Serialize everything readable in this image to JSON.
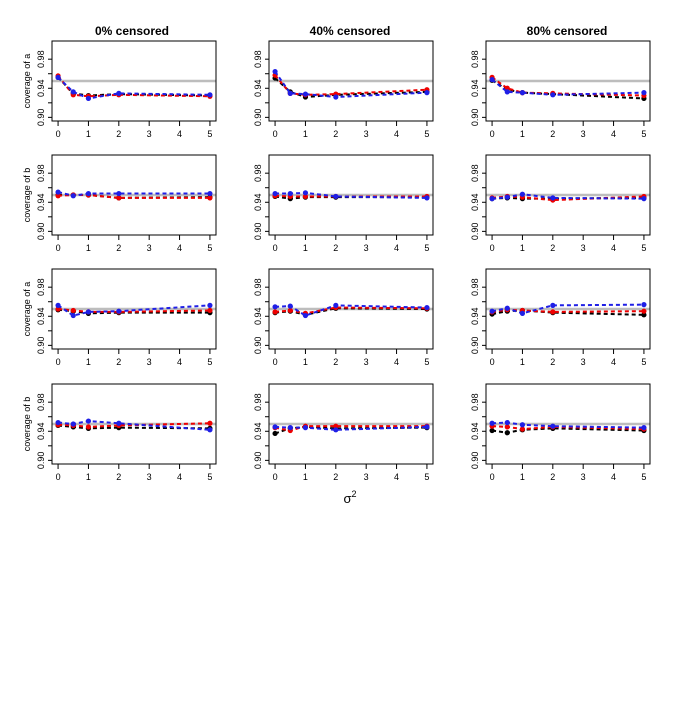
{
  "figure": {
    "column_titles": [
      "0% censored",
      "40% censored",
      "80% censored"
    ],
    "ylabels": [
      "coverage of a",
      "coverage of b",
      "coverage of a",
      "coverage of b"
    ],
    "xlabel": "σ",
    "xlabel_sup": "2",
    "x_ticks": [
      0,
      1,
      2,
      3,
      4,
      5
    ],
    "y_ticks": [
      "0.90",
      "0.94",
      "0.98"
    ],
    "colors": {
      "black": "#000000",
      "red": "#ee0000",
      "blue": "#1f1fe6",
      "reference": "#bdbdbd",
      "frame": "#000000"
    }
  },
  "chart_data": [
    {
      "type": "line",
      "row": 1,
      "col": 1,
      "title": "0% censored",
      "ylabel": "coverage of a",
      "xlabel": "",
      "xlim": [
        0,
        5
      ],
      "ylim": [
        0.9,
        1.0
      ],
      "reference_line": 0.95,
      "grid": false,
      "x": [
        0,
        0.5,
        1,
        2,
        5
      ],
      "series": [
        {
          "color": "black",
          "values": [
            0.955,
            0.933,
            0.93,
            0.932,
            0.93
          ]
        },
        {
          "color": "red",
          "values": [
            0.957,
            0.931,
            0.929,
            0.931,
            0.929
          ]
        },
        {
          "color": "blue",
          "values": [
            0.955,
            0.935,
            0.926,
            0.933,
            0.931
          ]
        }
      ]
    },
    {
      "type": "line",
      "row": 1,
      "col": 2,
      "title": "40% censored",
      "ylabel": "",
      "xlabel": "",
      "xlim": [
        0,
        5
      ],
      "ylim": [
        0.9,
        1.0
      ],
      "reference_line": 0.95,
      "grid": false,
      "x": [
        0,
        0.5,
        1,
        2,
        5
      ],
      "series": [
        {
          "color": "black",
          "values": [
            0.954,
            0.935,
            0.928,
            0.931,
            0.935
          ]
        },
        {
          "color": "red",
          "values": [
            0.958,
            0.933,
            0.931,
            0.932,
            0.938
          ]
        },
        {
          "color": "blue",
          "values": [
            0.963,
            0.933,
            0.932,
            0.928,
            0.934
          ]
        }
      ]
    },
    {
      "type": "line",
      "row": 1,
      "col": 3,
      "title": "80% censored",
      "ylabel": "",
      "xlabel": "",
      "xlim": [
        0,
        5
      ],
      "ylim": [
        0.9,
        1.0
      ],
      "reference_line": 0.95,
      "grid": false,
      "x": [
        0,
        0.5,
        1,
        2,
        5
      ],
      "series": [
        {
          "color": "black",
          "values": [
            0.951,
            0.938,
            0.934,
            0.932,
            0.926
          ]
        },
        {
          "color": "red",
          "values": [
            0.955,
            0.94,
            0.934,
            0.933,
            0.93
          ]
        },
        {
          "color": "blue",
          "values": [
            0.952,
            0.935,
            0.934,
            0.931,
            0.934
          ]
        }
      ]
    },
    {
      "type": "line",
      "row": 2,
      "col": 1,
      "title": "",
      "ylabel": "coverage of b",
      "xlabel": "",
      "xlim": [
        0,
        5
      ],
      "ylim": [
        0.9,
        1.0
      ],
      "reference_line": 0.95,
      "grid": false,
      "x": [
        0,
        0.5,
        1,
        2,
        5
      ],
      "series": [
        {
          "color": "black",
          "values": [
            0.95,
            0.95,
            0.95,
            0.946,
            0.947
          ]
        },
        {
          "color": "red",
          "values": [
            0.949,
            0.95,
            0.95,
            0.946,
            0.946
          ]
        },
        {
          "color": "blue",
          "values": [
            0.954,
            0.949,
            0.952,
            0.952,
            0.952
          ]
        }
      ]
    },
    {
      "type": "line",
      "row": 2,
      "col": 2,
      "title": "",
      "ylabel": "",
      "xlabel": "",
      "xlim": [
        0,
        5
      ],
      "ylim": [
        0.9,
        1.0
      ],
      "reference_line": 0.95,
      "grid": false,
      "x": [
        0,
        0.5,
        1,
        2,
        5
      ],
      "series": [
        {
          "color": "black",
          "values": [
            0.948,
            0.945,
            0.947,
            0.947,
            0.947
          ]
        },
        {
          "color": "red",
          "values": [
            0.949,
            0.948,
            0.948,
            0.948,
            0.948
          ]
        },
        {
          "color": "blue",
          "values": [
            0.952,
            0.952,
            0.953,
            0.948,
            0.946
          ]
        }
      ]
    },
    {
      "type": "line",
      "row": 2,
      "col": 3,
      "title": "",
      "ylabel": "",
      "xlabel": "",
      "xlim": [
        0,
        5
      ],
      "ylim": [
        0.9,
        1.0
      ],
      "reference_line": 0.95,
      "grid": false,
      "x": [
        0,
        0.5,
        1,
        2,
        5
      ],
      "series": [
        {
          "color": "black",
          "values": [
            0.945,
            0.946,
            0.945,
            0.945,
            0.946
          ]
        },
        {
          "color": "red",
          "values": [
            0.946,
            0.948,
            0.947,
            0.943,
            0.948
          ]
        },
        {
          "color": "blue",
          "values": [
            0.945,
            0.947,
            0.951,
            0.946,
            0.945
          ]
        }
      ]
    },
    {
      "type": "line",
      "row": 3,
      "col": 1,
      "title": "",
      "ylabel": "coverage of a",
      "xlabel": "",
      "xlim": [
        0,
        5
      ],
      "ylim": [
        0.9,
        1.0
      ],
      "reference_line": 0.95,
      "grid": false,
      "x": [
        0,
        0.5,
        1,
        2,
        5
      ],
      "series": [
        {
          "color": "black",
          "values": [
            0.949,
            0.947,
            0.944,
            0.945,
            0.945
          ]
        },
        {
          "color": "red",
          "values": [
            0.95,
            0.948,
            0.946,
            0.946,
            0.948
          ]
        },
        {
          "color": "blue",
          "values": [
            0.955,
            0.941,
            0.946,
            0.947,
            0.955
          ]
        }
      ]
    },
    {
      "type": "line",
      "row": 3,
      "col": 2,
      "title": "",
      "ylabel": "",
      "xlabel": "",
      "xlim": [
        0,
        5
      ],
      "ylim": [
        0.9,
        1.0
      ],
      "reference_line": 0.95,
      "grid": false,
      "x": [
        0,
        0.5,
        1,
        2,
        5
      ],
      "series": [
        {
          "color": "black",
          "values": [
            0.945,
            0.947,
            0.942,
            0.951,
            0.95
          ]
        },
        {
          "color": "red",
          "values": [
            0.946,
            0.948,
            0.944,
            0.952,
            0.951
          ]
        },
        {
          "color": "blue",
          "values": [
            0.953,
            0.954,
            0.941,
            0.955,
            0.952
          ]
        }
      ]
    },
    {
      "type": "line",
      "row": 3,
      "col": 3,
      "title": "",
      "ylabel": "",
      "xlabel": "",
      "xlim": [
        0,
        5
      ],
      "ylim": [
        0.9,
        1.0
      ],
      "reference_line": 0.95,
      "grid": false,
      "x": [
        0,
        0.5,
        1,
        2,
        5
      ],
      "series": [
        {
          "color": "black",
          "values": [
            0.943,
            0.947,
            0.948,
            0.945,
            0.942
          ]
        },
        {
          "color": "red",
          "values": [
            0.946,
            0.949,
            0.948,
            0.946,
            0.947
          ]
        },
        {
          "color": "blue",
          "values": [
            0.947,
            0.951,
            0.944,
            0.955,
            0.956
          ]
        }
      ]
    },
    {
      "type": "line",
      "row": 4,
      "col": 1,
      "title": "",
      "ylabel": "coverage of b",
      "xlabel": "",
      "xlim": [
        0,
        5
      ],
      "ylim": [
        0.9,
        1.0
      ],
      "reference_line": 0.95,
      "grid": false,
      "x": [
        0,
        0.5,
        1,
        2,
        5
      ],
      "series": [
        {
          "color": "black",
          "values": [
            0.948,
            0.946,
            0.944,
            0.945,
            0.944
          ]
        },
        {
          "color": "red",
          "values": [
            0.949,
            0.948,
            0.946,
            0.948,
            0.951
          ]
        },
        {
          "color": "blue",
          "values": [
            0.952,
            0.95,
            0.954,
            0.951,
            0.942
          ]
        }
      ]
    },
    {
      "type": "line",
      "row": 4,
      "col": 2,
      "title": "",
      "ylabel": "",
      "xlabel": "",
      "xlim": [
        0,
        5
      ],
      "ylim": [
        0.9,
        1.0
      ],
      "reference_line": 0.95,
      "grid": false,
      "x": [
        0,
        0.5,
        1,
        2,
        5
      ],
      "series": [
        {
          "color": "black",
          "values": [
            0.937,
            0.944,
            0.946,
            0.944,
            0.945
          ]
        },
        {
          "color": "red",
          "values": [
            0.945,
            0.941,
            0.947,
            0.947,
            0.947
          ]
        },
        {
          "color": "blue",
          "values": [
            0.946,
            0.945,
            0.945,
            0.942,
            0.946
          ]
        }
      ]
    },
    {
      "type": "line",
      "row": 4,
      "col": 3,
      "title": "",
      "ylabel": "",
      "xlabel": "",
      "xlim": [
        0,
        5
      ],
      "ylim": [
        0.9,
        1.0
      ],
      "reference_line": 0.95,
      "grid": false,
      "x": [
        0,
        0.5,
        1,
        2,
        5
      ],
      "series": [
        {
          "color": "black",
          "values": [
            0.941,
            0.938,
            0.942,
            0.944,
            0.941
          ]
        },
        {
          "color": "red",
          "values": [
            0.947,
            0.946,
            0.943,
            0.946,
            0.943
          ]
        },
        {
          "color": "blue",
          "values": [
            0.951,
            0.952,
            0.949,
            0.947,
            0.945
          ]
        }
      ]
    }
  ]
}
